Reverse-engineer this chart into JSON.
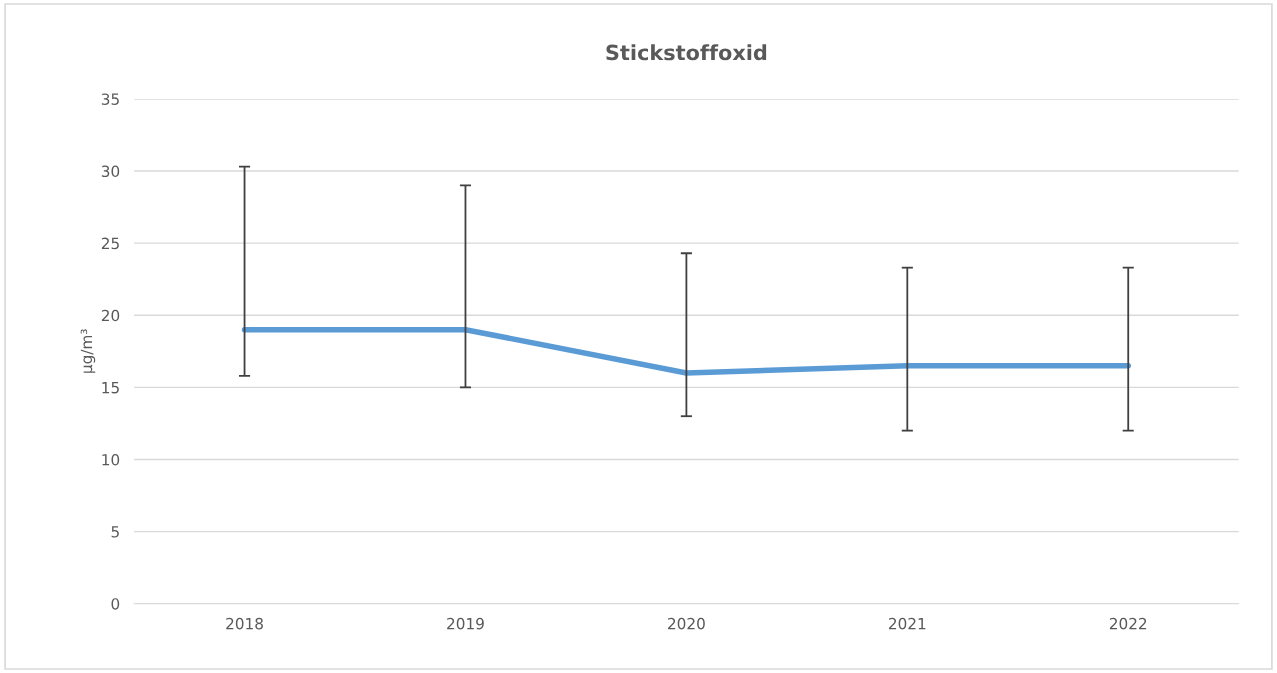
{
  "chart_data": {
    "type": "line",
    "title": "Stickstoffoxid",
    "ylabel": "µg/m³",
    "categories": [
      "2018",
      "2019",
      "2020",
      "2021",
      "2022"
    ],
    "series": [
      {
        "color": "#5b9bd5",
        "values": [
          19,
          19,
          16,
          16.5,
          16.5
        ],
        "errors": [
          [
            15.8,
            30.3
          ],
          [
            15,
            29
          ],
          [
            13,
            24.3
          ],
          [
            12,
            23.3
          ],
          [
            12,
            23.3
          ]
        ]
      }
    ],
    "ylim": [
      0,
      35
    ],
    "yticks": [
      0,
      5,
      10,
      15,
      20,
      25,
      30,
      35
    ],
    "grid": "y",
    "marker": "none",
    "line_style": "solid"
  }
}
